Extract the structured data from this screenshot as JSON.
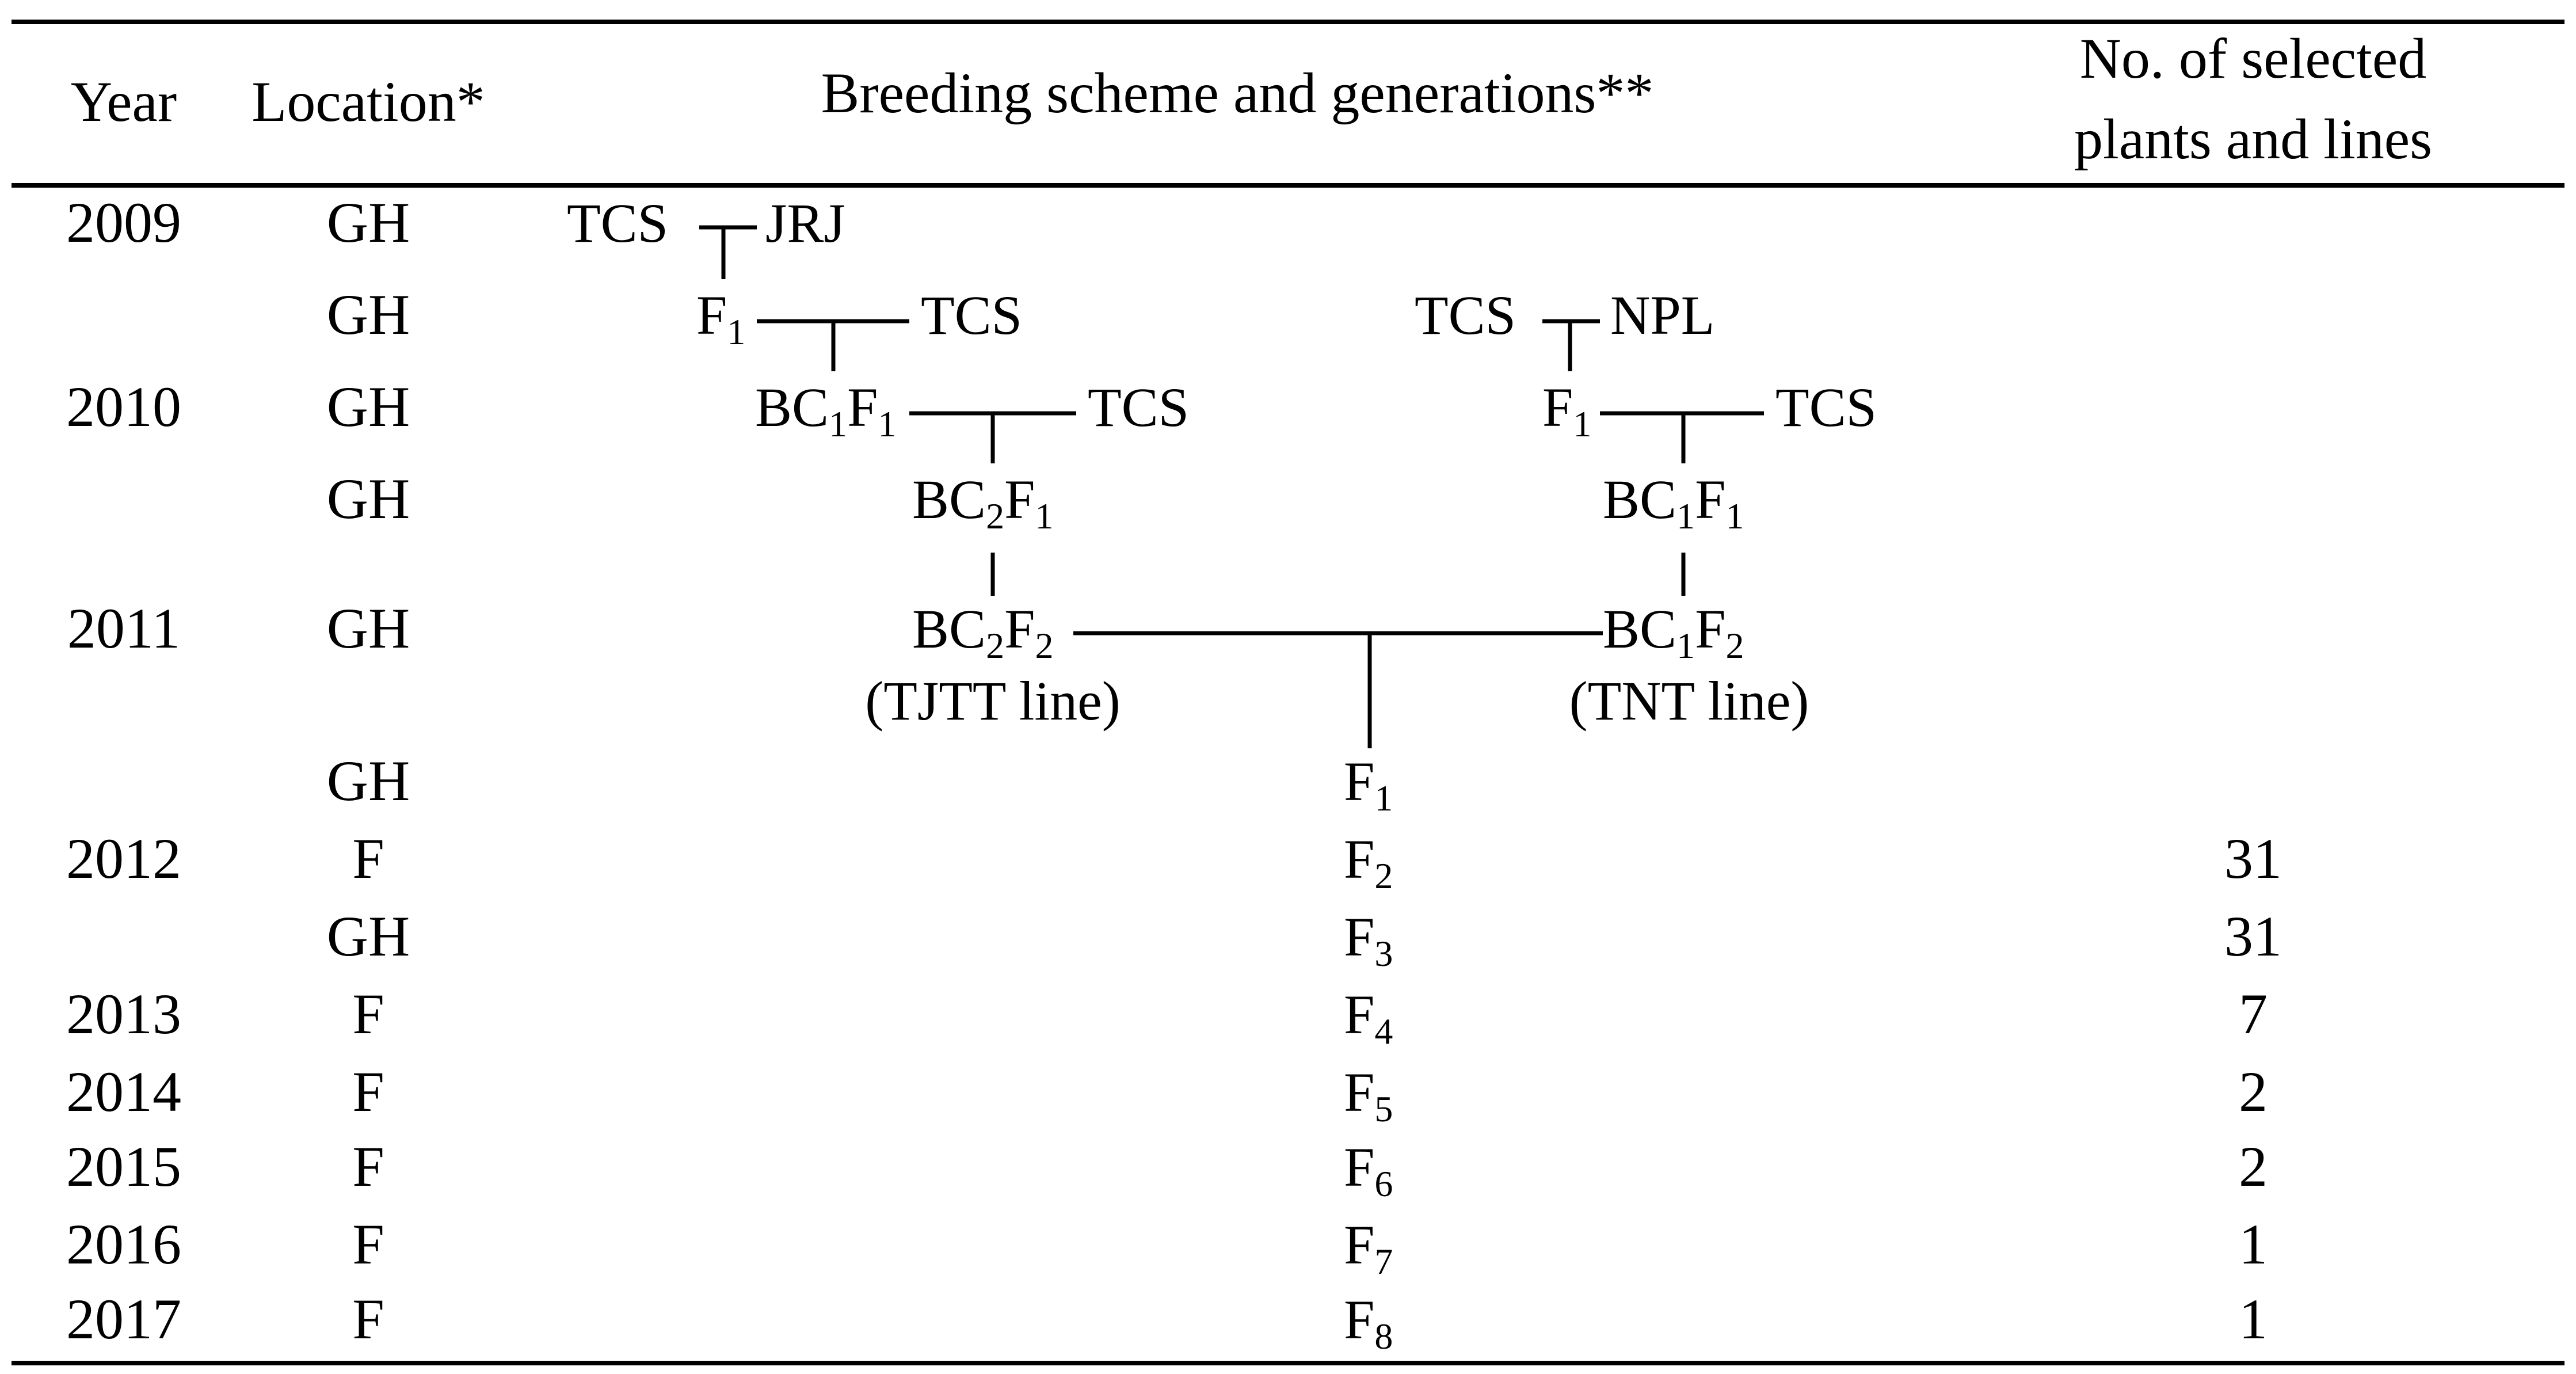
{
  "header": {
    "year": "Year",
    "location": "Location*",
    "scheme": "Breeding scheme and generations**",
    "selected_line1": "No. of selected",
    "selected_line2": "plants and lines"
  },
  "rows": [
    {
      "year": "2009",
      "location": "GH",
      "selected": ""
    },
    {
      "year": "",
      "location": "GH",
      "selected": ""
    },
    {
      "year": "2010",
      "location": "GH",
      "selected": ""
    },
    {
      "year": "",
      "location": "GH",
      "selected": ""
    },
    {
      "year": "2011",
      "location": "GH",
      "selected": ""
    },
    {
      "year": "",
      "location": "GH",
      "selected": ""
    },
    {
      "year": "2012",
      "location": "F",
      "selected": "31"
    },
    {
      "year": "",
      "location": "GH",
      "selected": "31"
    },
    {
      "year": "2013",
      "location": "F",
      "selected": "7"
    },
    {
      "year": "2014",
      "location": "F",
      "selected": "2"
    },
    {
      "year": "2015",
      "location": "F",
      "selected": "2"
    },
    {
      "year": "2016",
      "location": "F",
      "selected": "1"
    },
    {
      "year": "2017",
      "location": "F",
      "selected": "1"
    }
  ],
  "scheme": {
    "parent_tcs": "TCS",
    "parent_jrj": "JRJ",
    "parent_npl": "NPL",
    "f": "F",
    "bc": "BC",
    "sub_1": "1",
    "sub_2": "2",
    "tjtt_line": "(TJTT line)",
    "tnt_line": "(TNT line)",
    "generations": [
      "1",
      "2",
      "3",
      "4",
      "5",
      "6",
      "7",
      "8"
    ]
  }
}
